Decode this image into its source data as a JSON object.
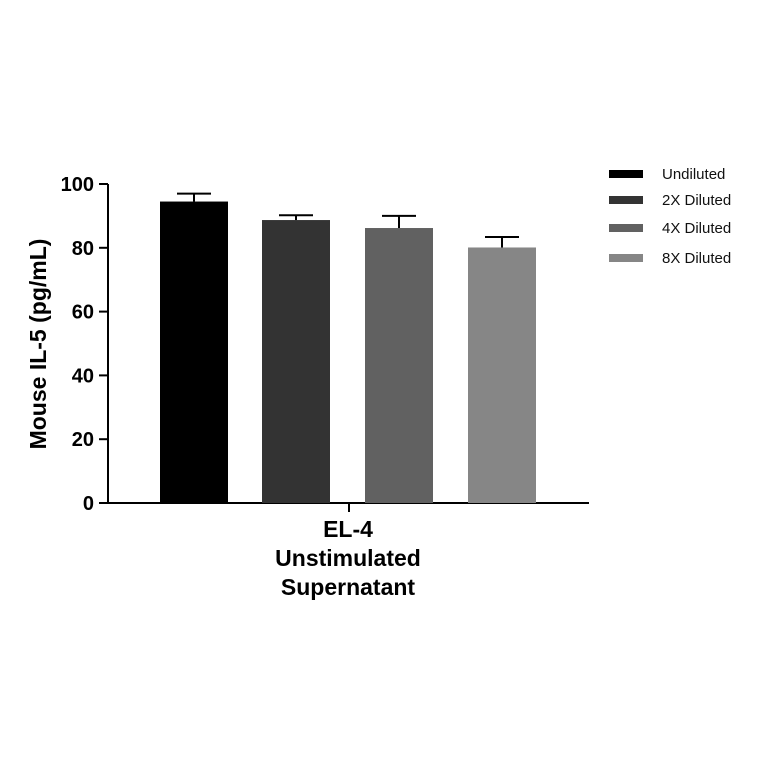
{
  "chart_data": {
    "type": "bar",
    "title": "",
    "ylabel": "Mouse IL-5 (pg/mL)",
    "xlabel": "",
    "categories": [
      "EL-4",
      "Unstimulated",
      "Supernatant"
    ],
    "group_label_lines": [
      "EL-4",
      "Unstimulated",
      "Supernatant"
    ],
    "ylim": [
      0,
      100
    ],
    "yticks": [
      "0",
      "20",
      "40",
      "60",
      "80",
      "100"
    ],
    "series": [
      {
        "name": "Undiluted",
        "value": 94.5,
        "error": 2.5,
        "color": "#000000"
      },
      {
        "name": "2X Diluted",
        "value": 88.7,
        "error": 1.5,
        "color": "#333333"
      },
      {
        "name": "4X Diluted",
        "value": 86.2,
        "error": 3.8,
        "color": "#616161"
      },
      {
        "name": "8X Diluted",
        "value": 80.1,
        "error": 3.3,
        "color": "#868686"
      }
    ],
    "legend_position": "top-right",
    "grid": false
  }
}
